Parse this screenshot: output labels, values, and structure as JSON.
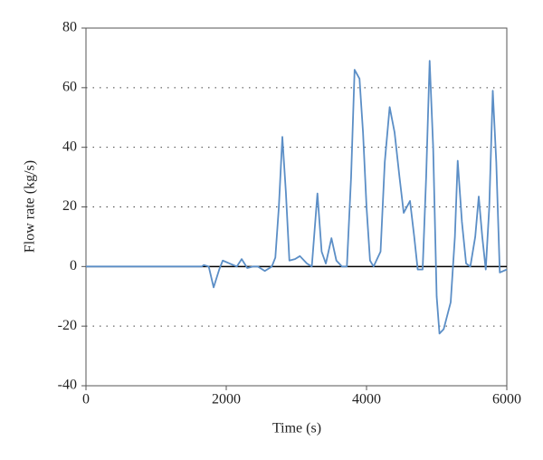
{
  "chart_data": {
    "type": "line",
    "xlabel": "Time (s)",
    "ylabel": "Flow rate (kg/s)",
    "x": [
      0,
      1650,
      1680,
      1750,
      1820,
      1900,
      1950,
      2050,
      2150,
      2220,
      2300,
      2380,
      2450,
      2550,
      2650,
      2700,
      2750,
      2800,
      2850,
      2900,
      2980,
      3050,
      3150,
      3220,
      3300,
      3360,
      3420,
      3500,
      3570,
      3650,
      3720,
      3780,
      3830,
      3900,
      3950,
      4000,
      4050,
      4100,
      4200,
      4260,
      4330,
      4400,
      4470,
      4530,
      4620,
      4680,
      4730,
      4800,
      4850,
      4900,
      4950,
      5000,
      5040,
      5100,
      5200,
      5260,
      5300,
      5360,
      5420,
      5480,
      5550,
      5600,
      5650,
      5700,
      5750,
      5800,
      5850,
      5900,
      6000
    ],
    "series": [
      {
        "color": "#5b8ec6",
        "values": [
          0,
          0,
          0.5,
          0,
          -7,
          -1,
          2,
          1,
          0,
          2.5,
          -0.5,
          0,
          0,
          -1.5,
          0,
          3,
          20,
          43.5,
          25,
          2,
          2.5,
          3.5,
          1,
          0,
          24.5,
          5,
          1,
          9.5,
          2,
          0,
          0,
          30,
          66,
          63,
          45,
          20,
          2,
          0,
          5,
          35,
          53.5,
          45,
          30,
          18,
          22,
          10,
          -1,
          -1,
          30,
          69,
          40,
          -10,
          -22.5,
          -21,
          -12,
          10,
          35.5,
          15,
          1,
          0,
          10,
          23.5,
          10,
          -1,
          20,
          59,
          35,
          -2,
          -1
        ]
      }
    ],
    "xlim": [
      0,
      6000
    ],
    "xticks": [
      0,
      2000,
      4000,
      6000
    ],
    "ylim": [
      -40,
      80
    ],
    "yticks": [
      -40,
      -20,
      0,
      20,
      40,
      60,
      80
    ],
    "grid": true
  }
}
